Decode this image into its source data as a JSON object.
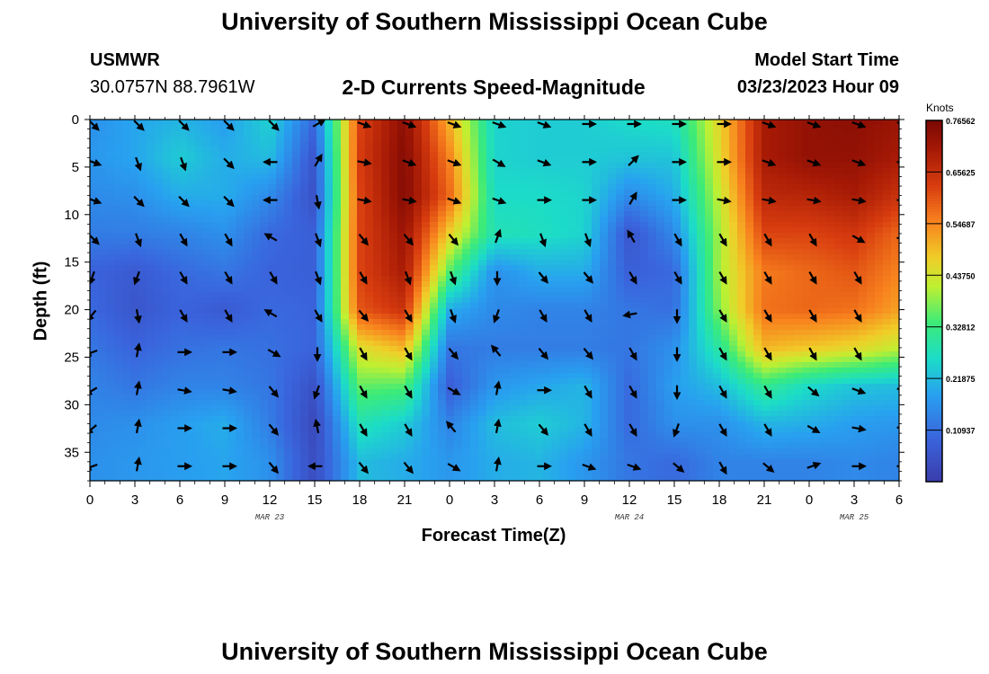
{
  "page": {
    "title": "University of Southern Mississippi Ocean Cube",
    "station_name": "USMWR",
    "station_coords": "30.0757N  88.7961W",
    "subtitle": "2-D Currents Speed-Magnitude",
    "model_start_label": "Model Start Time",
    "model_start_value": "03/23/2023 Hour 09",
    "footer_title": "University of Southern Mississippi Ocean Cube"
  },
  "chart_data": {
    "type": "heatmap",
    "title": "2-D Currents Speed-Magnitude",
    "xlabel": "Forecast Time(Z)",
    "ylabel": "Depth (ft)",
    "x_range_hours": [
      0,
      54
    ],
    "y_range_ft": [
      0,
      38
    ],
    "x_ticks": [
      {
        "hour": 0,
        "label": "0"
      },
      {
        "hour": 3,
        "label": "3"
      },
      {
        "hour": 6,
        "label": "6"
      },
      {
        "hour": 9,
        "label": "9"
      },
      {
        "hour": 12,
        "label": "12"
      },
      {
        "hour": 15,
        "label": "15"
      },
      {
        "hour": 18,
        "label": "18"
      },
      {
        "hour": 21,
        "label": "21"
      },
      {
        "hour": 24,
        "label": "0"
      },
      {
        "hour": 27,
        "label": "3"
      },
      {
        "hour": 30,
        "label": "6"
      },
      {
        "hour": 33,
        "label": "9"
      },
      {
        "hour": 36,
        "label": "12"
      },
      {
        "hour": 39,
        "label": "15"
      },
      {
        "hour": 42,
        "label": "18"
      },
      {
        "hour": 45,
        "label": "21"
      },
      {
        "hour": 48,
        "label": "0"
      },
      {
        "hour": 51,
        "label": "3"
      },
      {
        "hour": 54,
        "label": "6"
      }
    ],
    "date_labels": [
      {
        "hour": 12,
        "label": "MAR 23"
      },
      {
        "hour": 36,
        "label": "MAR 24"
      },
      {
        "hour": 51,
        "label": "MAR 25"
      }
    ],
    "y_ticks": [
      0,
      5,
      10,
      15,
      20,
      25,
      30,
      35
    ],
    "colorbar": {
      "unit": "Knots",
      "min": 0.0,
      "max": 0.765625,
      "tick_values": [
        0.109375,
        0.21875,
        0.328125,
        0.4375,
        0.546875,
        0.65625,
        0.765625
      ],
      "tick_labels": [
        "0.10937",
        "0.21875",
        "0.32812",
        "0.43750",
        "0.54687",
        "0.65625",
        "0.76562"
      ]
    },
    "depth_levels_ft": [
      0,
      4,
      8,
      12,
      16,
      20,
      24,
      28,
      32,
      36
    ],
    "times_hours": [
      0,
      3,
      6,
      9,
      12,
      15,
      18,
      21,
      24,
      27,
      30,
      33,
      36,
      39,
      42,
      45,
      48,
      51,
      54
    ],
    "speed_knots": [
      [
        0.16,
        0.19,
        0.21,
        0.18,
        0.25,
        0.1,
        0.62,
        0.74,
        0.5,
        0.25,
        0.24,
        0.24,
        0.26,
        0.27,
        0.46,
        0.7,
        0.73,
        0.74,
        0.72
      ],
      [
        0.17,
        0.19,
        0.24,
        0.2,
        0.22,
        0.06,
        0.63,
        0.75,
        0.55,
        0.25,
        0.24,
        0.24,
        0.23,
        0.23,
        0.45,
        0.7,
        0.73,
        0.73,
        0.7
      ],
      [
        0.15,
        0.16,
        0.2,
        0.2,
        0.15,
        0.05,
        0.62,
        0.75,
        0.58,
        0.26,
        0.26,
        0.25,
        0.15,
        0.2,
        0.42,
        0.67,
        0.68,
        0.7,
        0.65
      ],
      [
        0.13,
        0.13,
        0.14,
        0.16,
        0.1,
        0.08,
        0.62,
        0.72,
        0.47,
        0.28,
        0.27,
        0.25,
        0.06,
        0.15,
        0.4,
        0.62,
        0.62,
        0.64,
        0.58
      ],
      [
        0.09,
        0.07,
        0.1,
        0.12,
        0.09,
        0.08,
        0.62,
        0.7,
        0.35,
        0.16,
        0.2,
        0.2,
        0.08,
        0.1,
        0.4,
        0.56,
        0.58,
        0.6,
        0.55
      ],
      [
        0.1,
        0.06,
        0.09,
        0.07,
        0.1,
        0.09,
        0.6,
        0.65,
        0.2,
        0.15,
        0.14,
        0.14,
        0.12,
        0.11,
        0.38,
        0.57,
        0.58,
        0.57,
        0.52
      ],
      [
        0.12,
        0.09,
        0.11,
        0.12,
        0.11,
        0.09,
        0.45,
        0.5,
        0.12,
        0.13,
        0.13,
        0.13,
        0.12,
        0.16,
        0.3,
        0.5,
        0.48,
        0.46,
        0.42
      ],
      [
        0.14,
        0.12,
        0.14,
        0.14,
        0.12,
        0.05,
        0.36,
        0.35,
        0.08,
        0.17,
        0.19,
        0.21,
        0.1,
        0.18,
        0.22,
        0.32,
        0.26,
        0.23,
        0.22
      ],
      [
        0.15,
        0.16,
        0.18,
        0.2,
        0.13,
        0.03,
        0.28,
        0.24,
        0.14,
        0.22,
        0.24,
        0.21,
        0.1,
        0.16,
        0.16,
        0.21,
        0.2,
        0.18,
        0.17
      ],
      [
        0.16,
        0.17,
        0.18,
        0.19,
        0.16,
        0.04,
        0.22,
        0.2,
        0.17,
        0.2,
        0.21,
        0.17,
        0.12,
        0.1,
        0.14,
        0.14,
        0.14,
        0.15,
        0.14
      ]
    ],
    "direction_deg_to": [
      [
        135,
        135,
        135,
        135,
        135,
        60,
        110,
        110,
        110,
        110,
        110,
        90,
        90,
        90,
        90,
        110,
        110,
        110,
        110
      ],
      [
        110,
        160,
        160,
        135,
        270,
        30,
        100,
        110,
        110,
        120,
        110,
        90,
        45,
        90,
        90,
        110,
        110,
        110,
        90
      ],
      [
        110,
        135,
        135,
        135,
        270,
        170,
        100,
        100,
        110,
        110,
        90,
        90,
        30,
        90,
        100,
        100,
        100,
        100,
        90
      ],
      [
        135,
        160,
        150,
        150,
        300,
        160,
        140,
        140,
        140,
        20,
        160,
        160,
        330,
        150,
        150,
        150,
        150,
        120,
        90
      ],
      [
        200,
        200,
        150,
        150,
        150,
        160,
        150,
        160,
        160,
        180,
        140,
        140,
        150,
        150,
        150,
        150,
        150,
        150,
        150
      ],
      [
        220,
        170,
        150,
        150,
        300,
        150,
        140,
        150,
        160,
        200,
        150,
        150,
        260,
        180,
        150,
        150,
        150,
        150,
        150
      ],
      [
        250,
        10,
        90,
        90,
        120,
        180,
        150,
        150,
        140,
        320,
        140,
        140,
        150,
        180,
        150,
        150,
        150,
        150,
        150
      ],
      [
        240,
        10,
        100,
        100,
        140,
        200,
        150,
        150,
        120,
        10,
        90,
        150,
        150,
        180,
        150,
        150,
        130,
        110,
        110
      ],
      [
        230,
        10,
        90,
        90,
        140,
        350,
        150,
        150,
        320,
        10,
        140,
        150,
        150,
        200,
        150,
        150,
        120,
        100,
        100
      ],
      [
        250,
        10,
        90,
        90,
        140,
        270,
        140,
        140,
        120,
        10,
        90,
        110,
        110,
        130,
        150,
        130,
        70,
        90,
        90
      ]
    ]
  }
}
